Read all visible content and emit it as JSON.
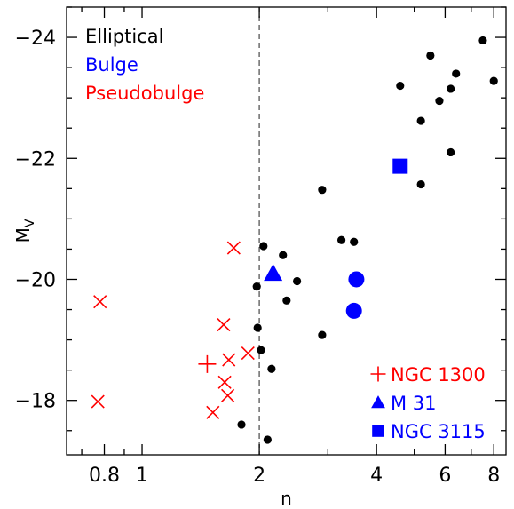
{
  "chart_data": {
    "type": "scatter",
    "xlabel": "n",
    "ylabel_main": "M",
    "ylabel_sub": "V",
    "x_scale": "log",
    "xlim": [
      0.64,
      8.6
    ],
    "ylim": [
      -17.1,
      -24.5
    ],
    "y_inverted": true,
    "x_ticks": [
      0.8,
      1,
      2,
      4,
      6,
      8
    ],
    "x_tick_labels": [
      "0.8",
      "1",
      "2",
      "4",
      "6",
      "8"
    ],
    "y_ticks": [
      -18,
      -20,
      -22,
      -24
    ],
    "y_tick_labels": [
      "−18",
      "−20",
      "−22",
      "−24"
    ],
    "vline_x": 2.0,
    "legend_top": [
      {
        "label": "Elliptical",
        "color": "#000000"
      },
      {
        "label": "Bulge",
        "color": "#0000ff"
      },
      {
        "label": "Pseudobulge",
        "color": "#ff0000"
      }
    ],
    "legend_bottom": [
      {
        "label": "NGC 1300",
        "marker": "plus",
        "color": "#ff0000"
      },
      {
        "label": "M 31",
        "marker": "triangle",
        "color": "#0000ff"
      },
      {
        "label": "NGC 3115",
        "marker": "square",
        "color": "#0000ff"
      }
    ],
    "series": [
      {
        "name": "Elliptical",
        "marker": "dot",
        "color": "#000000",
        "points": [
          [
            1.97,
            -19.88
          ],
          [
            2.05,
            -20.55
          ],
          [
            2.3,
            -20.4
          ],
          [
            2.5,
            -19.97
          ],
          [
            2.35,
            -19.65
          ],
          [
            1.98,
            -19.2
          ],
          [
            2.02,
            -18.83
          ],
          [
            2.15,
            -18.52
          ],
          [
            1.8,
            -17.6
          ],
          [
            2.1,
            -17.35
          ],
          [
            2.9,
            -19.08
          ],
          [
            3.25,
            -20.65
          ],
          [
            3.5,
            -20.62
          ],
          [
            2.9,
            -21.48
          ],
          [
            4.6,
            -23.2
          ],
          [
            5.5,
            -23.7
          ],
          [
            6.4,
            -23.4
          ],
          [
            5.8,
            -22.95
          ],
          [
            6.2,
            -23.15
          ],
          [
            7.5,
            -23.95
          ],
          [
            8.0,
            -23.28
          ],
          [
            5.2,
            -22.62
          ],
          [
            6.2,
            -22.1
          ],
          [
            5.2,
            -21.57
          ]
        ]
      },
      {
        "name": "Bulge",
        "marker": "circle",
        "color": "#0000ff",
        "points": [
          [
            3.55,
            -20.0
          ],
          [
            3.5,
            -19.48
          ]
        ]
      },
      {
        "name": "Pseudobulge",
        "marker": "cross",
        "color": "#ff0000",
        "points": [
          [
            0.78,
            -19.63
          ],
          [
            0.77,
            -17.98
          ],
          [
            1.72,
            -20.52
          ],
          [
            1.62,
            -19.25
          ],
          [
            1.67,
            -18.67
          ],
          [
            1.63,
            -18.3
          ],
          [
            1.66,
            -18.08
          ],
          [
            1.87,
            -18.78
          ],
          [
            1.52,
            -17.8
          ]
        ]
      },
      {
        "name": "NGC 1300",
        "marker": "plus",
        "color": "#ff0000",
        "points": [
          [
            1.47,
            -18.6
          ]
        ]
      },
      {
        "name": "M 31",
        "marker": "triangle",
        "color": "#0000ff",
        "points": [
          [
            2.17,
            -20.1
          ]
        ]
      },
      {
        "name": "NGC 3115",
        "marker": "square",
        "color": "#0000ff",
        "points": [
          [
            4.6,
            -21.87
          ]
        ]
      }
    ]
  }
}
